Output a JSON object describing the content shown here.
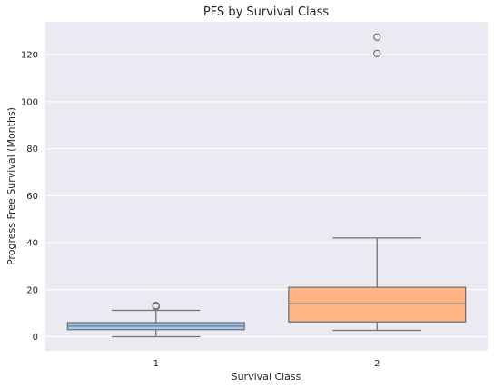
{
  "chart_data": {
    "type": "box",
    "title": "PFS by Survival Class",
    "xlabel": "Survival Class",
    "ylabel": "Progress Free Survival (Months)",
    "categories": [
      "1",
      "2"
    ],
    "ylim": [
      -6,
      134
    ],
    "yticks": [
      0,
      20,
      40,
      60,
      80,
      100,
      120
    ],
    "grid": true,
    "boxes": [
      {
        "category": "1",
        "whisker_low": 0,
        "q1": 3,
        "median": 4.5,
        "q3": 6,
        "whisker_high": 11.2,
        "outliers": [
          12.8,
          13.3
        ],
        "color": "#a1c9f4"
      },
      {
        "category": "2",
        "whisker_low": 2.7,
        "q1": 6.3,
        "median": 14,
        "q3": 21,
        "whisker_high": 42,
        "outliers": [
          120.5,
          127.5
        ],
        "color": "#ffb482"
      }
    ],
    "colors": {
      "plot_background": "#eaeaf2",
      "grid": "#ffffff",
      "line": "#737373"
    }
  }
}
